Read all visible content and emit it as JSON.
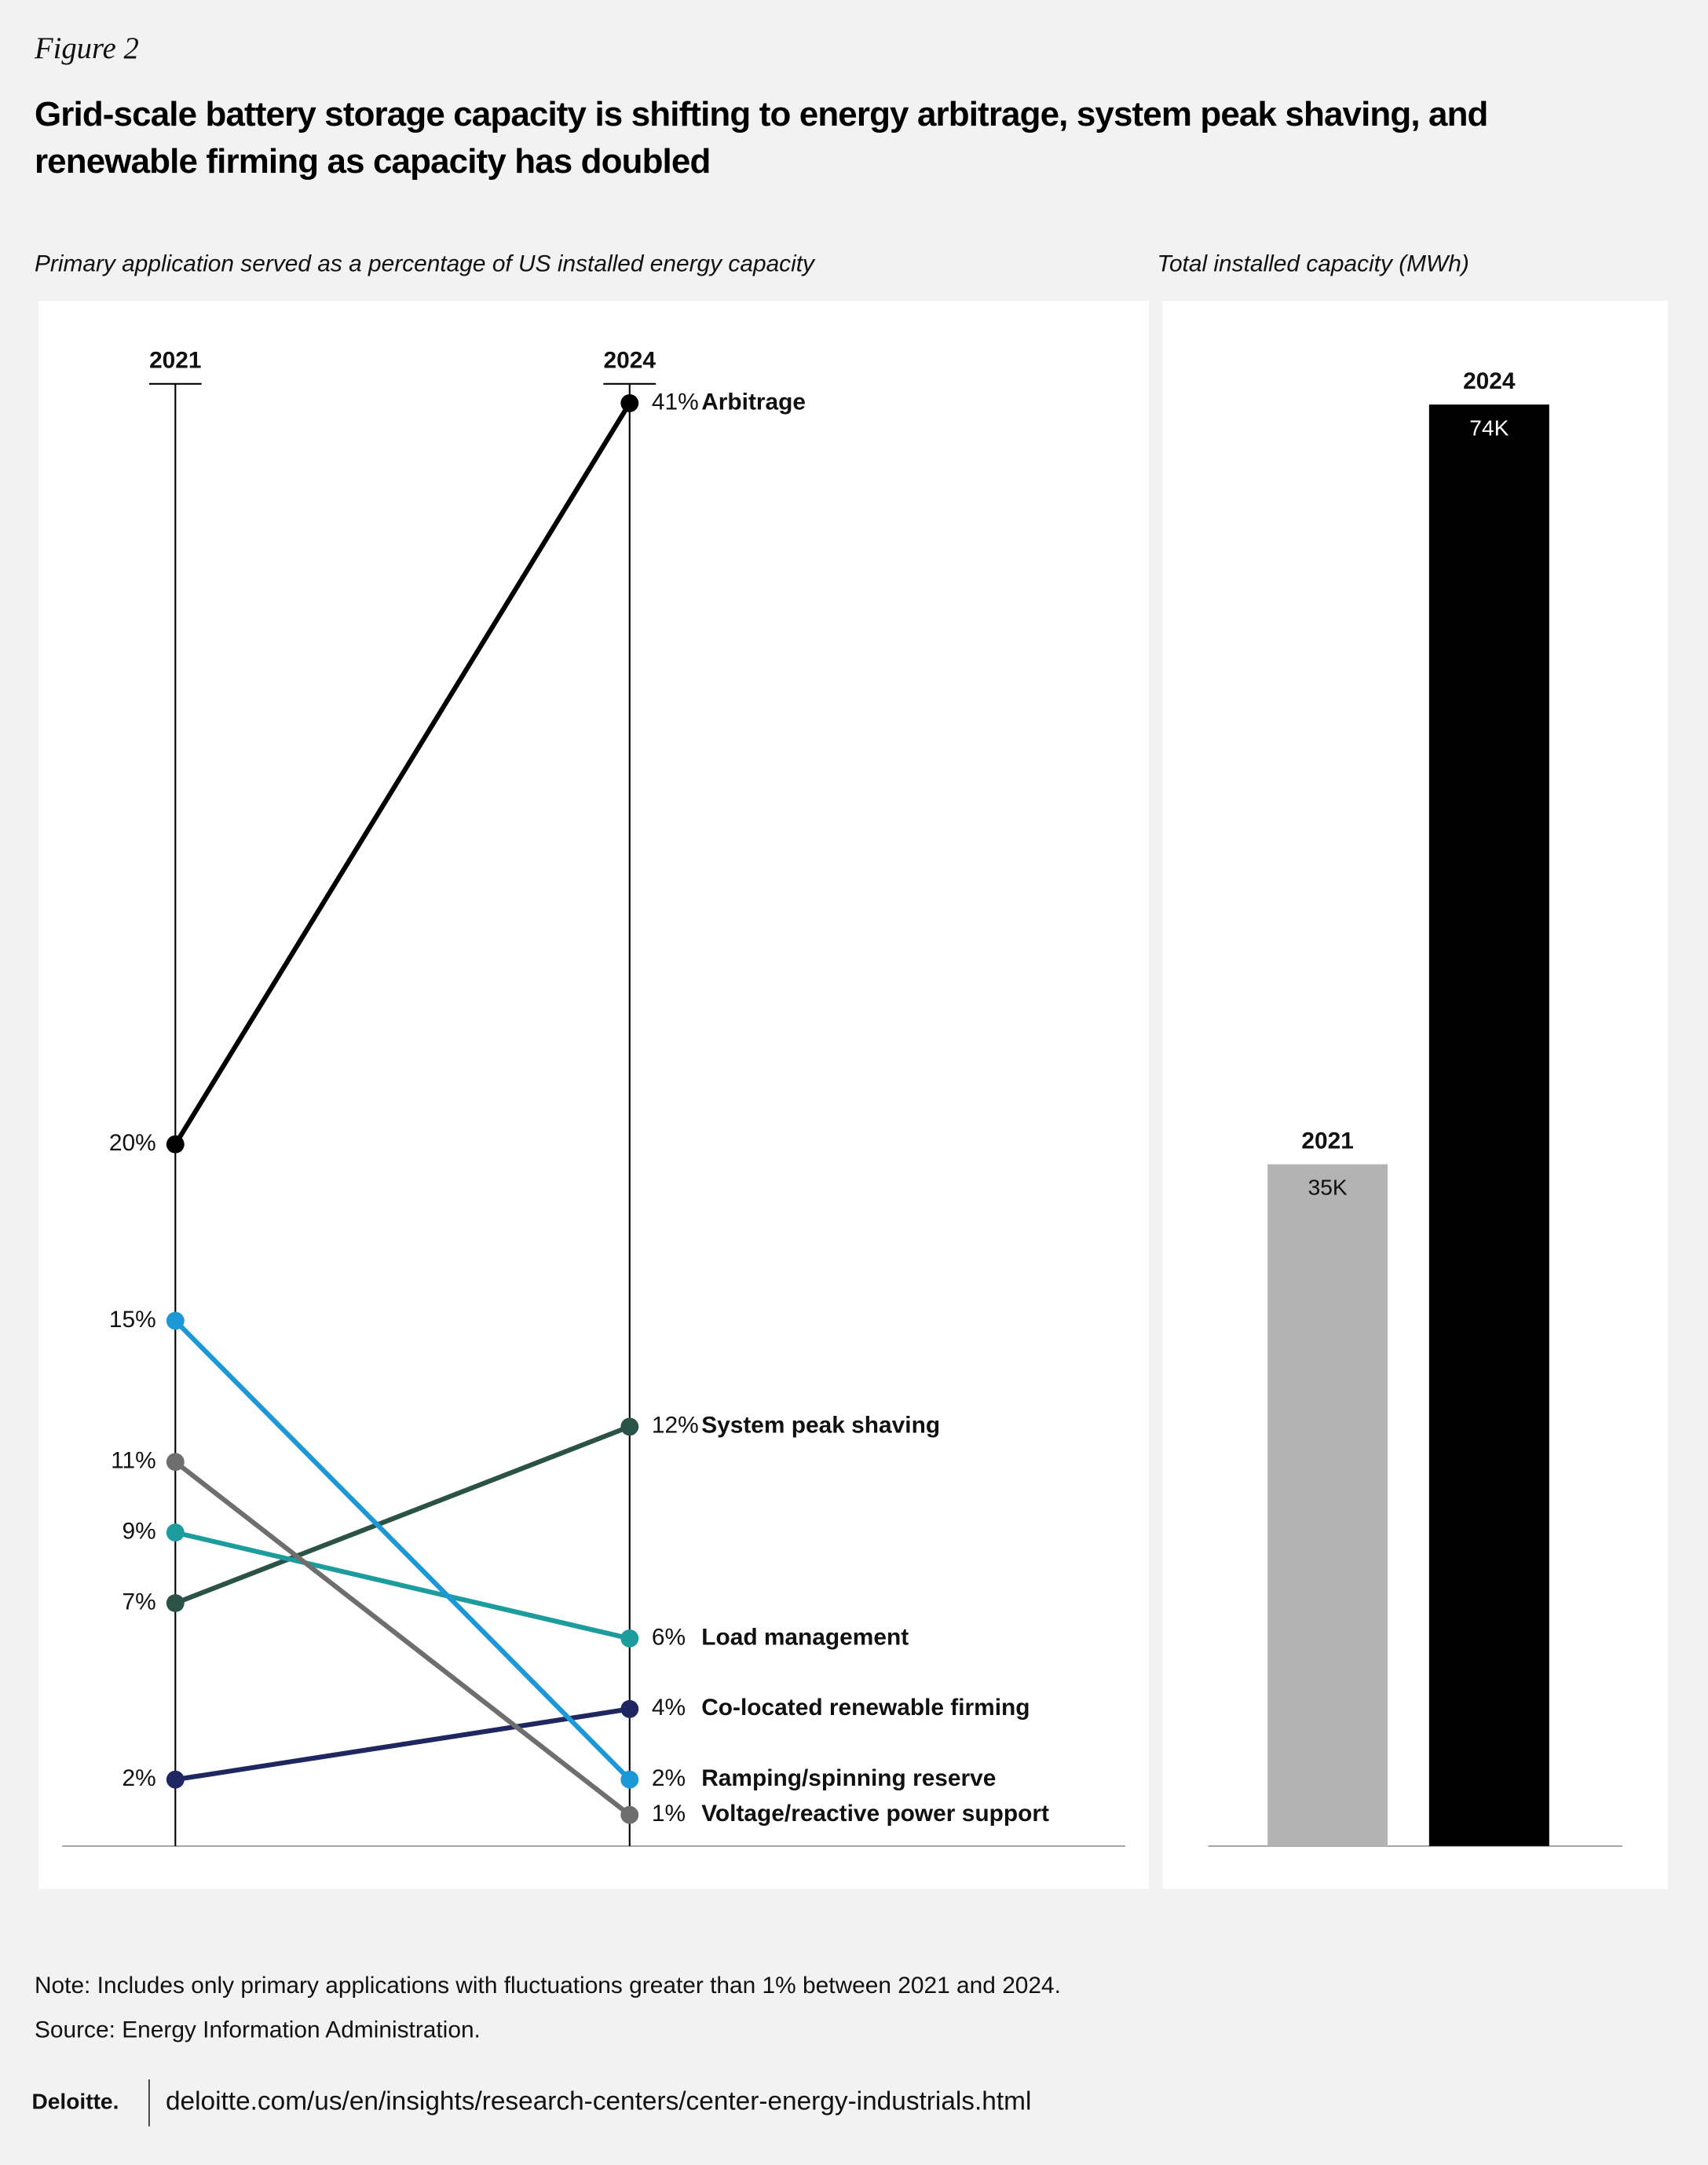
{
  "header": {
    "figure": "Figure 2",
    "title": "Grid-scale battery storage capacity is shifting to energy arbitrage, system peak shaving, and renewable firming as capacity has doubled"
  },
  "chart_data": [
    {
      "type": "slope",
      "subtitle": "Primary application served as a percentage of US installed energy capacity",
      "categories": [
        "2021",
        "2024"
      ],
      "ylim": [
        0,
        41
      ],
      "series": [
        {
          "name": "Arbitrage",
          "color": "#000000",
          "values": [
            20,
            41
          ],
          "value_labels": [
            "20%",
            "41%"
          ]
        },
        {
          "name": "System peak shaving",
          "color": "#2b5247",
          "values": [
            7,
            12
          ],
          "value_labels": [
            "7%",
            "12%"
          ]
        },
        {
          "name": "Load management",
          "color": "#1c9c9c",
          "values": [
            9,
            6
          ],
          "value_labels": [
            "9%",
            "6%"
          ]
        },
        {
          "name": "Co-located renewable firming",
          "color": "#1e2760",
          "values": [
            2,
            4
          ],
          "value_labels": [
            "2%",
            "4%"
          ]
        },
        {
          "name": "Ramping/spinning reserve",
          "color": "#1d98d6",
          "values": [
            15,
            2
          ],
          "value_labels": [
            "15%",
            "2%"
          ]
        },
        {
          "name": "Voltage/reactive power support",
          "color": "#6e6e6e",
          "values": [
            11,
            1
          ],
          "value_labels": [
            "11%",
            "1%"
          ]
        }
      ]
    },
    {
      "type": "bar",
      "subtitle": "Total installed capacity (MWh)",
      "categories": [
        "2021",
        "2024"
      ],
      "values": [
        35000,
        74000
      ],
      "value_labels": [
        "35K",
        "74K"
      ],
      "colors": [
        "#b3b3b3",
        "#000000"
      ],
      "ylim": [
        0,
        74000
      ]
    }
  ],
  "footer": {
    "note": "Note: Includes only primary applications with fluctuations greater than 1% between 2021 and 2024.",
    "source": "Source: Energy Information Administration.",
    "brand": "Deloitte.",
    "url": "deloitte.com/us/en/insights/research-centers/center-energy-industrials.html"
  }
}
